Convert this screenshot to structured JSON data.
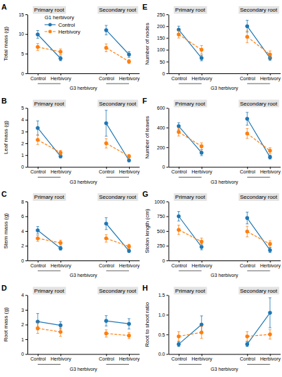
{
  "chart_data": [
    {
      "type": "line",
      "title": "A",
      "ylabel": "Total mass (g)",
      "xlabel": "G3 herbivory",
      "group_labels": [
        "Primary root",
        "Secondary root"
      ],
      "categories": [
        "Control",
        "Herbivory",
        null,
        "Control",
        "Herbivory"
      ],
      "ylim": [
        0,
        15
      ],
      "yticks": [
        0,
        5,
        10,
        15
      ],
      "legend": "upper left",
      "legend_title": "G1 herbivory",
      "series": [
        {
          "name": "Control",
          "line_style": "solid",
          "values": [
            9.9,
            3.8,
            null,
            11.0,
            4.8
          ],
          "errors": [
            1.0,
            0.6,
            null,
            1.2,
            0.7
          ]
        },
        {
          "name": "Herbivory",
          "line_style": "dashed",
          "values": [
            6.7,
            5.5,
            null,
            6.5,
            3.0
          ],
          "errors": [
            0.9,
            0.7,
            null,
            1.0,
            0.5
          ]
        }
      ]
    },
    {
      "type": "line",
      "title": "B",
      "ylabel": "Leaf mass (g)",
      "xlabel": "G3 herbivory",
      "group_labels": [
        "Primary root",
        "Secondary root"
      ],
      "categories": [
        "Control",
        "Herbivory",
        null,
        "Control",
        "Herbivory"
      ],
      "ylim": [
        0,
        5
      ],
      "yticks": [
        0,
        1,
        2,
        3,
        4,
        5
      ],
      "series": [
        {
          "line_style": "solid",
          "values": [
            3.3,
            0.9,
            null,
            3.7,
            0.55
          ],
          "errors": [
            0.6,
            0.15,
            null,
            1.1,
            0.1
          ]
        },
        {
          "line_style": "dashed",
          "values": [
            2.3,
            1.2,
            null,
            2.0,
            0.9
          ],
          "errors": [
            0.4,
            0.2,
            null,
            0.4,
            0.15
          ]
        }
      ]
    },
    {
      "type": "line",
      "title": "C",
      "ylabel": "Stem mass (g)",
      "xlabel": "G3 herbivory",
      "group_labels": [
        "Primary root",
        "Secondary root"
      ],
      "categories": [
        "Control",
        "Herbivory",
        null,
        "Control",
        "Herbivory"
      ],
      "ylim": [
        0,
        8
      ],
      "yticks": [
        0,
        2,
        4,
        6,
        8
      ],
      "series": [
        {
          "line_style": "solid",
          "values": [
            4.1,
            1.65,
            null,
            5.0,
            1.3
          ],
          "errors": [
            0.5,
            0.25,
            null,
            0.8,
            0.2
          ]
        },
        {
          "line_style": "dashed",
          "values": [
            3.0,
            2.4,
            null,
            3.0,
            1.9
          ],
          "errors": [
            0.4,
            0.35,
            null,
            0.5,
            0.3
          ]
        }
      ]
    },
    {
      "type": "line",
      "title": "D",
      "ylabel": "Root mass (g)",
      "xlabel": "G3 herbivory",
      "group_labels": [
        "Primary root",
        "Secondary root"
      ],
      "categories": [
        "Control",
        "Herbivory",
        null,
        "Control",
        "Herbivory"
      ],
      "ylim": [
        0,
        4
      ],
      "yticks": [
        0,
        1,
        2,
        3,
        4
      ],
      "series": [
        {
          "line_style": "solid",
          "values": [
            2.2,
            1.95,
            null,
            2.25,
            2.05
          ],
          "errors": [
            0.55,
            0.25,
            null,
            0.35,
            0.35
          ]
        },
        {
          "line_style": "dashed",
          "values": [
            1.75,
            1.5,
            null,
            1.4,
            1.25
          ],
          "errors": [
            0.35,
            0.3,
            null,
            0.25,
            0.2
          ]
        }
      ]
    },
    {
      "type": "line",
      "title": "E",
      "ylabel": "Number of nodes",
      "xlabel": "G3 herbivory",
      "group_labels": [
        "Primary root",
        "Secondary root"
      ],
      "categories": [
        "Control",
        "Herbivory",
        null,
        "Control",
        "Herbivory"
      ],
      "ylim": [
        0,
        250
      ],
      "yticks": [
        0,
        50,
        100,
        150,
        200,
        250
      ],
      "series": [
        {
          "line_style": "solid",
          "values": [
            185,
            65,
            null,
            200,
            65
          ],
          "errors": [
            15,
            12,
            null,
            25,
            10
          ]
        },
        {
          "line_style": "dashed",
          "values": [
            165,
            100,
            null,
            155,
            80
          ],
          "errors": [
            15,
            18,
            null,
            25,
            15
          ]
        }
      ]
    },
    {
      "type": "line",
      "title": "F",
      "ylabel": "Number of leaves",
      "xlabel": "G3 herbivory",
      "group_labels": [
        "Primary root",
        "Secondary root"
      ],
      "categories": [
        "Control",
        "Herbivory",
        null,
        "Control",
        "Herbivory"
      ],
      "ylim": [
        0,
        600
      ],
      "yticks": [
        0,
        200,
        400,
        600
      ],
      "series": [
        {
          "line_style": "solid",
          "values": [
            415,
            145,
            null,
            490,
            100
          ],
          "errors": [
            35,
            30,
            null,
            65,
            20
          ]
        },
        {
          "line_style": "dashed",
          "values": [
            355,
            210,
            null,
            340,
            165
          ],
          "errors": [
            40,
            35,
            null,
            50,
            30
          ]
        }
      ]
    },
    {
      "type": "line",
      "title": "G",
      "ylabel": "Stolon length (cm)",
      "xlabel": "G3 herbivory",
      "group_labels": [
        "Primary root",
        "Secondary root"
      ],
      "categories": [
        "Control",
        "Herbivory",
        null,
        "Control",
        "Herbivory"
      ],
      "ylim": [
        0,
        1000
      ],
      "yticks": [
        0,
        250,
        500,
        750,
        1000
      ],
      "series": [
        {
          "line_style": "solid",
          "values": [
            750,
            230,
            null,
            720,
            175
          ],
          "errors": [
            80,
            50,
            null,
            100,
            40
          ]
        },
        {
          "line_style": "dashed",
          "values": [
            520,
            320,
            null,
            490,
            280
          ],
          "errors": [
            80,
            60,
            null,
            90,
            55
          ]
        }
      ]
    },
    {
      "type": "line",
      "title": "H",
      "ylabel": "Root to shoot ratio",
      "xlabel": "G3 herbivory",
      "group_labels": [
        "Primary root",
        "Secondary root"
      ],
      "categories": [
        "Control",
        "Herbivory",
        null,
        "Control",
        "Herbivory"
      ],
      "ylim": [
        0.0,
        1.5
      ],
      "yticks": [
        {
          "value": 0,
          "label": "0.0"
        },
        0.5,
        {
          "value": 1,
          "label": "1.0"
        },
        1.5
      ],
      "series": [
        {
          "line_style": "solid",
          "values": [
            0.25,
            0.75,
            null,
            0.25,
            1.05
          ],
          "errors": [
            0.06,
            0.22,
            null,
            0.06,
            0.38
          ]
        },
        {
          "line_style": "dashed",
          "values": [
            0.45,
            0.55,
            null,
            0.45,
            0.5
          ],
          "errors": [
            0.12,
            0.15,
            null,
            0.12,
            0.12
          ]
        }
      ]
    }
  ]
}
